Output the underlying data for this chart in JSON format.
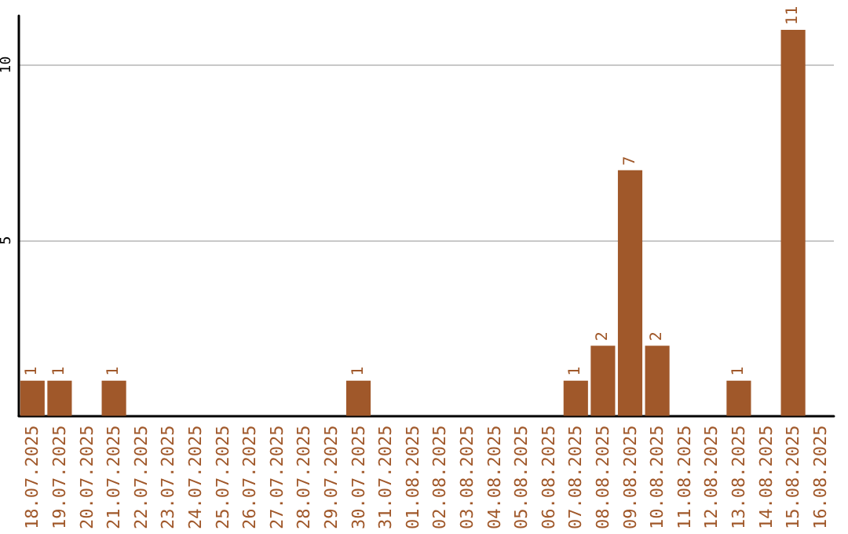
{
  "chart_data": {
    "type": "bar",
    "categories": [
      "18.07.2025",
      "19.07.2025",
      "20.07.2025",
      "21.07.2025",
      "22.07.2025",
      "23.07.2025",
      "24.07.2025",
      "25.07.2025",
      "26.07.2025",
      "27.07.2025",
      "28.07.2025",
      "29.07.2025",
      "30.07.2025",
      "31.07.2025",
      "01.08.2025",
      "02.08.2025",
      "03.08.2025",
      "04.08.2025",
      "05.08.2025",
      "06.08.2025",
      "07.08.2025",
      "08.08.2025",
      "09.08.2025",
      "10.08.2025",
      "11.08.2025",
      "12.08.2025",
      "13.08.2025",
      "14.08.2025",
      "15.08.2025",
      "16.08.2025"
    ],
    "values": [
      1,
      1,
      0,
      1,
      0,
      0,
      0,
      0,
      0,
      0,
      0,
      0,
      1,
      0,
      0,
      0,
      0,
      0,
      0,
      0,
      1,
      2,
      7,
      2,
      0,
      0,
      1,
      0,
      11,
      0
    ],
    "value_labels": [
      "1",
      "1",
      null,
      "1",
      null,
      null,
      null,
      null,
      null,
      null,
      null,
      null,
      "1",
      null,
      null,
      null,
      null,
      null,
      null,
      null,
      "1",
      "2",
      "7",
      "2",
      null,
      null,
      "1",
      null,
      "11",
      null
    ],
    "color": "#a0582a",
    "ylim": [
      0,
      11.4
    ],
    "yticks": [
      5,
      10
    ],
    "grid": "y"
  }
}
